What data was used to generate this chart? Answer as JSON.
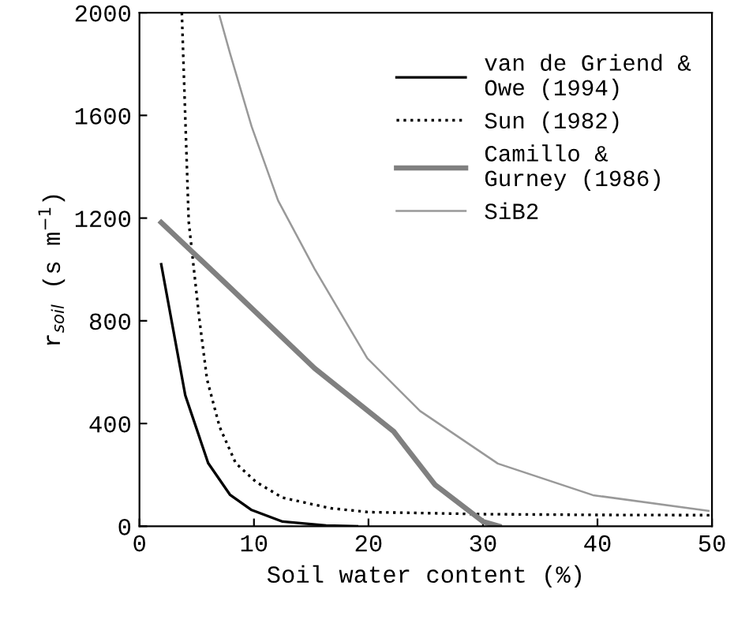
{
  "chart_data": {
    "type": "line",
    "xlabel": "Soil water content (%)",
    "ylabel": "r$_{soil}$ (s m$^{−1}$)",
    "xlim": [
      0,
      50
    ],
    "ylim": [
      0,
      2000
    ],
    "xticks": [
      0,
      10,
      20,
      30,
      40,
      50
    ],
    "yticks": [
      0,
      400,
      800,
      1200,
      1600,
      2000
    ],
    "grid": false,
    "legend": "top right",
    "series": [
      {
        "name": "van de Griend &\nOwe (1994)",
        "color": "#000000",
        "line_style": "solid",
        "x": [
          1.9,
          4.0,
          6.0,
          7.9,
          9.8,
          12.5,
          16.3,
          19
        ],
        "values": [
          1020,
          510,
          246,
          123,
          63,
          18,
          3,
          0
        ]
      },
      {
        "name": "Sun (1982)",
        "color": "#000000",
        "line_style": "dotted",
        "x": [
          3.7,
          4.3,
          5.2,
          5.9,
          7.0,
          8.4,
          10.2,
          12.5,
          16.7,
          20,
          30,
          40,
          50
        ],
        "values": [
          2000,
          1187,
          818,
          572,
          387,
          246,
          172,
          111,
          70,
          55,
          47,
          44,
          43
        ]
      },
      {
        "name": "Camillo &\nGurney (1986)",
        "color": "#808080",
        "line_style": "solid",
        "x": [
          1.9,
          7.9,
          15.3,
          22.2,
          25.8,
          30,
          31.4
        ],
        "values": [
          1183,
          930,
          615,
          369,
          162,
          18,
          0
        ]
      },
      {
        "name": "SiB2",
        "color": "#999999",
        "line_style": "solid",
        "x": [
          7.0,
          7.9,
          9.8,
          12.1,
          15.3,
          19.9,
          24.5,
          31.3,
          39.6,
          49.7
        ],
        "values": [
          1987,
          1843,
          1556,
          1269,
          1002,
          654,
          449,
          244,
          121,
          60
        ]
      }
    ]
  }
}
